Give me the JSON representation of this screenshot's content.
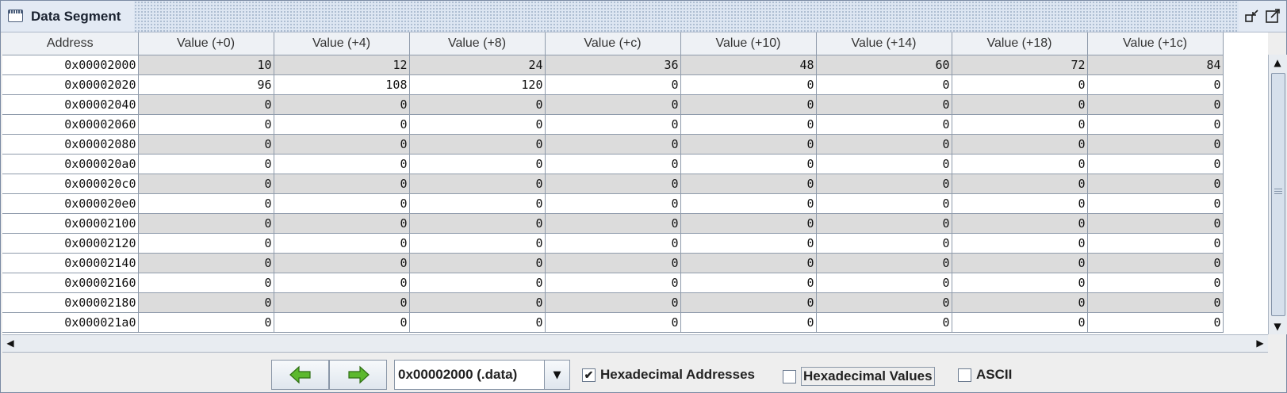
{
  "window": {
    "title": "Data Segment"
  },
  "table": {
    "headers": [
      "Address",
      "Value (+0)",
      "Value (+4)",
      "Value (+8)",
      "Value (+c)",
      "Value (+10)",
      "Value (+14)",
      "Value (+18)",
      "Value (+1c)"
    ],
    "rows": [
      [
        "0x00002000",
        "10",
        "12",
        "24",
        "36",
        "48",
        "60",
        "72",
        "84"
      ],
      [
        "0x00002020",
        "96",
        "108",
        "120",
        "0",
        "0",
        "0",
        "0",
        "0"
      ],
      [
        "0x00002040",
        "0",
        "0",
        "0",
        "0",
        "0",
        "0",
        "0",
        "0"
      ],
      [
        "0x00002060",
        "0",
        "0",
        "0",
        "0",
        "0",
        "0",
        "0",
        "0"
      ],
      [
        "0x00002080",
        "0",
        "0",
        "0",
        "0",
        "0",
        "0",
        "0",
        "0"
      ],
      [
        "0x000020a0",
        "0",
        "0",
        "0",
        "0",
        "0",
        "0",
        "0",
        "0"
      ],
      [
        "0x000020c0",
        "0",
        "0",
        "0",
        "0",
        "0",
        "0",
        "0",
        "0"
      ],
      [
        "0x000020e0",
        "0",
        "0",
        "0",
        "0",
        "0",
        "0",
        "0",
        "0"
      ],
      [
        "0x00002100",
        "0",
        "0",
        "0",
        "0",
        "0",
        "0",
        "0",
        "0"
      ],
      [
        "0x00002120",
        "0",
        "0",
        "0",
        "0",
        "0",
        "0",
        "0",
        "0"
      ],
      [
        "0x00002140",
        "0",
        "0",
        "0",
        "0",
        "0",
        "0",
        "0",
        "0"
      ],
      [
        "0x00002160",
        "0",
        "0",
        "0",
        "0",
        "0",
        "0",
        "0",
        "0"
      ],
      [
        "0x00002180",
        "0",
        "0",
        "0",
        "0",
        "0",
        "0",
        "0",
        "0"
      ],
      [
        "0x000021a0",
        "0",
        "0",
        "0",
        "0",
        "0",
        "0",
        "0",
        "0"
      ]
    ]
  },
  "controls": {
    "prev_icon": "left-arrow-icon",
    "next_icon": "right-arrow-icon",
    "segment_select": {
      "value": "0x00002000 (.data)"
    },
    "hex_addresses": {
      "label": "Hexadecimal Addresses",
      "checked": true,
      "mark": "✔"
    },
    "hex_values": {
      "label": "Hexadecimal Values",
      "checked": false,
      "mark": ""
    },
    "ascii": {
      "label": "ASCII",
      "checked": false,
      "mark": ""
    }
  },
  "colors": {
    "arrow_green": "#5cb82e",
    "row_alt": "#dcdcdc",
    "grid": "#8f9bab"
  }
}
